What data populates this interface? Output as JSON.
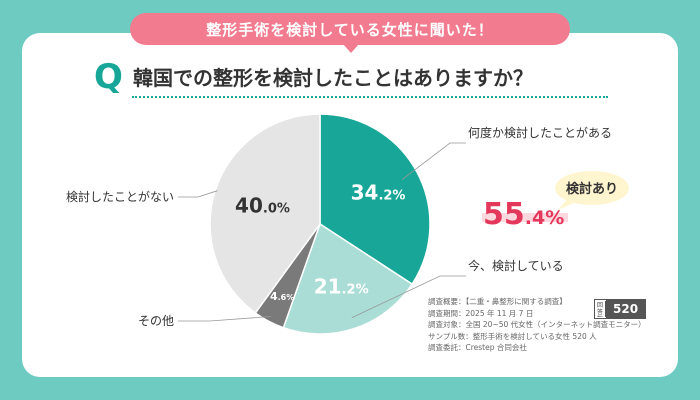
{
  "banner": "整形手術を検討している女性に聞いた！",
  "question": {
    "mark": "Q",
    "text": "韓国での整形を検討したことはありますか？"
  },
  "colors": {
    "background": "#6ecbc2",
    "accent": "#17a697",
    "light_teal": "#a9ddd5",
    "gray": "#7a7a7a",
    "light_gray": "#e5e5e5",
    "banner": "#f27b8f",
    "highlight": "#e3385b",
    "bubble": "#fff5cf"
  },
  "chart_data": {
    "type": "pie",
    "slices": [
      {
        "label": "何度か検討したことがある",
        "value": 34.2,
        "display_main": "34",
        "display_dec": ".2%",
        "color": "#17a697",
        "text_color": "#ffffff"
      },
      {
        "label": "今、検討している",
        "value": 21.2,
        "display_main": "21",
        "display_dec": ".2%",
        "color": "#a9ddd5",
        "text_color": "#ffffff"
      },
      {
        "label": "その他",
        "value": 4.6,
        "display_main": "4",
        "display_dec": ".6%",
        "color": "#7a7a7a",
        "text_color": "#ffffff"
      },
      {
        "label": "検討したことがない",
        "value": 40.0,
        "display_main": "40",
        "display_dec": ".0%",
        "color": "#e5e5e5",
        "text_color": "#333333"
      }
    ]
  },
  "callout": {
    "bubble_text": "検討あり",
    "value_main": "55",
    "value_dec": ".4%"
  },
  "survey": {
    "lines": [
      "調査概要：【二重・鼻整形に関する調査】",
      "調査期間：2025 年 11 月 7 日",
      "調査対象：全国 20~50 代女性（インターネット調査モニター）",
      "サンプル数：整形手術を検討している女性 520 人",
      "調査委託：Crestep 合同会社"
    ],
    "sample_tag": "回答数",
    "sample_count": "520"
  }
}
